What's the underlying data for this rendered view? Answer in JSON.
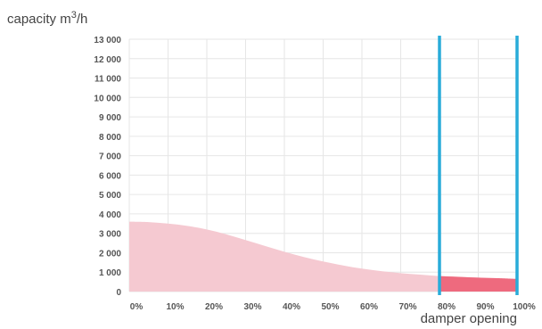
{
  "chart_data": {
    "type": "area",
    "ylabel": "capacity m",
    "ylabel_sup": "3",
    "ylabel_suffix": "/h",
    "xlabel": "damper opening",
    "x_ticks": [
      "0%",
      "10%",
      "20%",
      "30%",
      "40%",
      "50%",
      "60%",
      "70%",
      "80%",
      "90%",
      "100%"
    ],
    "y_ticks": [
      "0",
      "1 000",
      "2 000",
      "3 000",
      "4 000",
      "5 000",
      "6 000",
      "7 000",
      "8 000",
      "9 000",
      "10 000",
      "11 000",
      "12 000",
      "13 000"
    ],
    "xlim": [
      0,
      100
    ],
    "ylim": [
      0,
      13000
    ],
    "grid": true,
    "series": [
      {
        "x": [
          0,
          5,
          10,
          15,
          20,
          25,
          30,
          35,
          40,
          45,
          50,
          55,
          60,
          65,
          70,
          75,
          80,
          85,
          90,
          95,
          100
        ],
        "values": [
          3600,
          3580,
          3500,
          3380,
          3200,
          2950,
          2650,
          2350,
          2050,
          1780,
          1550,
          1350,
          1180,
          1050,
          950,
          870,
          800,
          760,
          720,
          690,
          650
        ]
      }
    ],
    "highlight_range": [
      80,
      100
    ],
    "colors": {
      "area": "#f5c9d1",
      "highlight_area": "#ee6a7e",
      "range_lines": "#29acd9",
      "grid": "#e6e6e6"
    }
  }
}
